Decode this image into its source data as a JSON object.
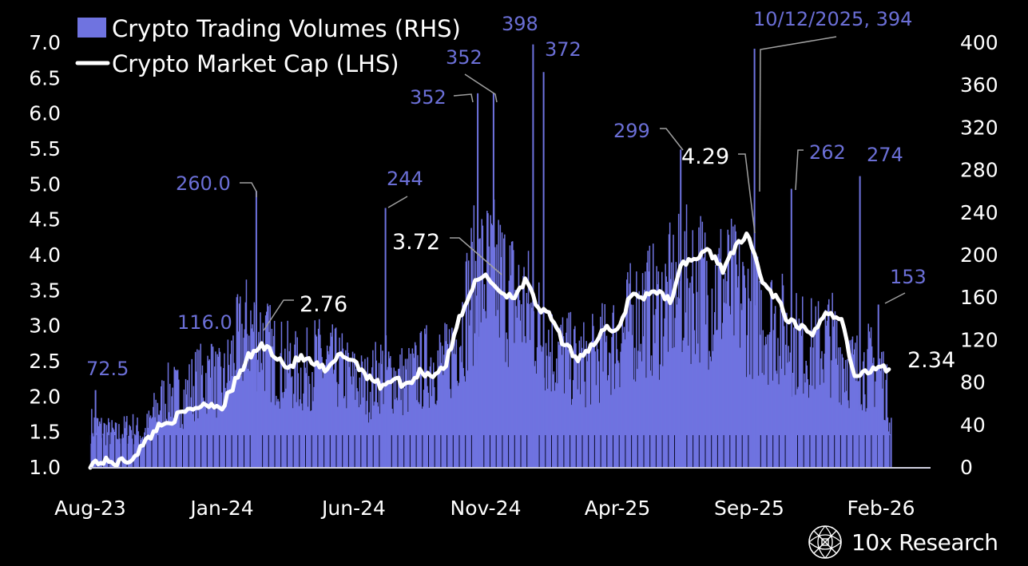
{
  "branding": {
    "name": "10x Research"
  },
  "colors": {
    "bars": "#6f73e0",
    "line": "#ffffff",
    "annotation_volume": "#6b6fd6",
    "background": "#000000",
    "leader": "#a0a0a0"
  },
  "chart_data": {
    "type": "bar+line",
    "title": "",
    "legend": {
      "placement": "top-left",
      "entries": [
        {
          "name": "Crypto Trading Volumes (RHS)",
          "marker": "square",
          "color": "#6f73e0"
        },
        {
          "name": "Crypto Market Cap (LHS)",
          "marker": "line",
          "color": "#ffffff"
        }
      ]
    },
    "x_axis": {
      "type": "date",
      "range_months": [
        "2023-08",
        "2026-02"
      ],
      "tick_labels": [
        "Aug-23",
        "Jan-24",
        "Jun-24",
        "Nov-24",
        "Apr-25",
        "Sep-25",
        "Feb-26"
      ]
    },
    "y_left": {
      "label": "Crypto Market Cap (LHS)",
      "range": [
        1.0,
        7.0
      ],
      "ticks": [
        "1.0",
        "1.5",
        "2.0",
        "2.5",
        "3.0",
        "3.5",
        "4.0",
        "4.5",
        "5.0",
        "5.5",
        "6.0",
        "6.5",
        "7.0"
      ]
    },
    "y_right": {
      "label": "Crypto Trading Volumes (RHS)",
      "range": [
        0,
        400
      ],
      "ticks": [
        "0",
        "40",
        "80",
        "120",
        "160",
        "200",
        "240",
        "280",
        "320",
        "360",
        "400"
      ]
    },
    "series": [
      {
        "name": "Crypto Market Cap (LHS)",
        "axis": "left",
        "type": "line",
        "x_month_index": [
          0,
          0.5,
          1,
          1.5,
          2,
          2.5,
          3,
          3.5,
          4,
          4.5,
          5,
          5.5,
          6,
          6.5,
          7,
          7.5,
          8,
          8.5,
          9,
          9.5,
          10,
          10.5,
          11,
          11.5,
          12,
          12.5,
          13,
          13.5,
          14,
          14.5,
          15,
          15.5,
          16,
          16.5,
          17,
          17.5,
          18,
          18.5,
          19,
          19.5,
          20,
          20.5,
          21,
          21.5,
          22,
          22.5,
          23,
          23.5,
          24,
          24.5,
          25,
          25.5,
          26,
          26.5,
          27,
          27.5,
          28,
          28.5,
          29,
          29.5,
          30,
          30.4
        ],
        "values": [
          1.05,
          1.08,
          1.06,
          1.1,
          1.3,
          1.55,
          1.65,
          1.75,
          1.85,
          1.9,
          1.85,
          2.2,
          2.55,
          2.72,
          2.6,
          2.4,
          2.55,
          2.45,
          2.35,
          2.6,
          2.5,
          2.3,
          2.15,
          2.25,
          2.15,
          2.35,
          2.3,
          2.45,
          3.1,
          3.55,
          3.72,
          3.5,
          3.4,
          3.62,
          3.25,
          3.1,
          2.7,
          2.55,
          2.7,
          2.95,
          2.9,
          3.45,
          3.4,
          3.5,
          3.35,
          3.9,
          3.95,
          4.05,
          3.8,
          4.1,
          4.29,
          3.6,
          3.4,
          3.05,
          2.95,
          2.9,
          3.2,
          3.1,
          2.25,
          2.35,
          2.45,
          2.34
        ]
      },
      {
        "name": "Crypto Trading Volumes (RHS)",
        "axis": "right",
        "type": "bar",
        "x_month_index": [
          0,
          0.5,
          1,
          1.5,
          2,
          2.5,
          3,
          3.5,
          4,
          4.5,
          5,
          5.5,
          6,
          6.5,
          7,
          7.5,
          8,
          8.5,
          9,
          9.5,
          10,
          10.5,
          11,
          11.5,
          12,
          12.5,
          13,
          13.5,
          14,
          14.5,
          15,
          15.5,
          16,
          16.5,
          17,
          17.5,
          18,
          18.5,
          19,
          19.5,
          20,
          20.5,
          21,
          21.5,
          22,
          22.5,
          23,
          23.5,
          24,
          24.5,
          25,
          25.5,
          26,
          26.5,
          27,
          27.5,
          28,
          28.5,
          29,
          29.5,
          30,
          30.4
        ],
        "values": [
          40,
          35,
          30,
          38,
          30,
          55,
          70,
          65,
          80,
          85,
          75,
          110,
          130,
          120,
          100,
          95,
          85,
          100,
          95,
          90,
          80,
          75,
          90,
          85,
          80,
          90,
          100,
          95,
          130,
          170,
          180,
          175,
          160,
          150,
          130,
          110,
          105,
          95,
          100,
          110,
          120,
          135,
          150,
          145,
          160,
          170,
          175,
          165,
          170,
          160,
          150,
          140,
          135,
          120,
          115,
          110,
          120,
          105,
          90,
          95,
          90,
          45
        ]
      }
    ],
    "annotations": [
      {
        "series": "Crypto Trading Volumes (RHS)",
        "label": "72.5",
        "value": 72.5
      },
      {
        "series": "Crypto Trading Volumes (RHS)",
        "label": "116.0",
        "value": 116.0
      },
      {
        "series": "Crypto Trading Volumes (RHS)",
        "label": "260.0",
        "value": 260.0
      },
      {
        "series": "Crypto Trading Volumes (RHS)",
        "label": "244",
        "value": 244
      },
      {
        "series": "Crypto Trading Volumes (RHS)",
        "label": "352",
        "value": 352
      },
      {
        "series": "Crypto Trading Volumes (RHS)",
        "label": "352",
        "value": 352
      },
      {
        "series": "Crypto Trading Volumes (RHS)",
        "label": "398",
        "value": 398
      },
      {
        "series": "Crypto Trading Volumes (RHS)",
        "label": "372",
        "value": 372
      },
      {
        "series": "Crypto Trading Volumes (RHS)",
        "label": "299",
        "value": 299
      },
      {
        "series": "Crypto Trading Volumes (RHS)",
        "label": "10/12/2025, 394",
        "value": 394
      },
      {
        "series": "Crypto Trading Volumes (RHS)",
        "label": "262",
        "value": 262
      },
      {
        "series": "Crypto Trading Volumes (RHS)",
        "label": "274",
        "value": 274
      },
      {
        "series": "Crypto Trading Volumes (RHS)",
        "label": "153",
        "value": 153
      },
      {
        "series": "Crypto Market Cap (LHS)",
        "label": "2.76",
        "value": 2.76
      },
      {
        "series": "Crypto Market Cap (LHS)",
        "label": "3.72",
        "value": 3.72
      },
      {
        "series": "Crypto Market Cap (LHS)",
        "label": "4.29",
        "value": 4.29
      },
      {
        "series": "Crypto Market Cap (LHS)",
        "label": "2.34",
        "value": 2.34
      }
    ],
    "spikes": [
      {
        "month_index": 0.2,
        "value": 72.5
      },
      {
        "month_index": 4.6,
        "value": 116.0
      },
      {
        "month_index": 6.3,
        "value": 260.0
      },
      {
        "month_index": 11.2,
        "value": 244
      },
      {
        "month_index": 14.7,
        "value": 352
      },
      {
        "month_index": 15.3,
        "value": 352
      },
      {
        "month_index": 16.8,
        "value": 398
      },
      {
        "month_index": 17.2,
        "value": 372
      },
      {
        "month_index": 22.4,
        "value": 299
      },
      {
        "month_index": 25.2,
        "value": 394
      },
      {
        "month_index": 26.6,
        "value": 262
      },
      {
        "month_index": 29.2,
        "value": 274
      },
      {
        "month_index": 29.9,
        "value": 153
      }
    ]
  }
}
